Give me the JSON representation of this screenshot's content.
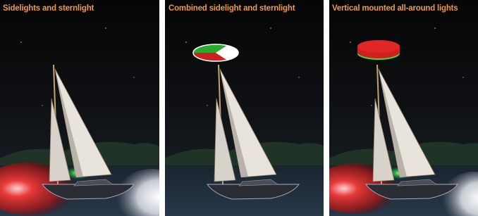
{
  "panels": [
    {
      "title": "Sidelights and sternlight"
    },
    {
      "title": "Combined sidelight and sternlight"
    },
    {
      "title": "Vertical mounted all-around lights"
    }
  ]
}
